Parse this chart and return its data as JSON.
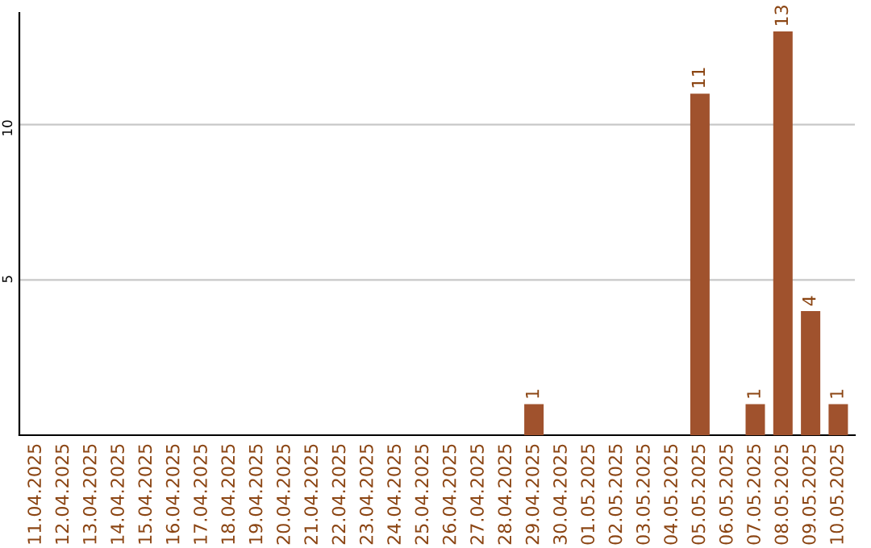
{
  "chart_data": {
    "type": "bar",
    "categories": [
      "11.04.2025",
      "12.04.2025",
      "13.04.2025",
      "14.04.2025",
      "15.04.2025",
      "16.04.2025",
      "17.04.2025",
      "18.04.2025",
      "19.04.2025",
      "20.04.2025",
      "21.04.2025",
      "22.04.2025",
      "23.04.2025",
      "24.04.2025",
      "25.04.2025",
      "26.04.2025",
      "27.04.2025",
      "28.04.2025",
      "29.04.2025",
      "30.04.2025",
      "01.05.2025",
      "02.05.2025",
      "03.05.2025",
      "04.05.2025",
      "05.05.2025",
      "06.05.2025",
      "07.05.2025",
      "08.05.2025",
      "09.05.2025",
      "10.05.2025"
    ],
    "values": [
      0,
      0,
      0,
      0,
      0,
      0,
      0,
      0,
      0,
      0,
      0,
      0,
      0,
      0,
      0,
      0,
      0,
      0,
      1,
      0,
      0,
      0,
      0,
      0,
      11,
      0,
      1,
      13,
      4,
      1
    ],
    "color": "#a0522d",
    "ylim": [
      0,
      13.6
    ],
    "yticks": [
      5,
      10
    ],
    "grid": "y",
    "value_labels": [
      null,
      null,
      null,
      null,
      null,
      null,
      null,
      null,
      null,
      null,
      null,
      null,
      null,
      null,
      null,
      null,
      null,
      null,
      "1",
      null,
      null,
      null,
      null,
      null,
      "11",
      null,
      "1",
      "13",
      "4",
      "1"
    ]
  }
}
